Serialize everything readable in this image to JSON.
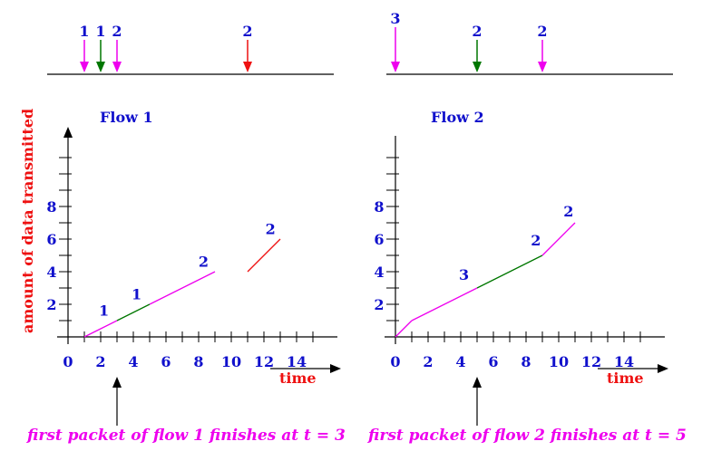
{
  "colors": {
    "blue": "#1010cc",
    "red": "#ee1111",
    "magenta": "#ee00ee",
    "green": "#007700",
    "black": "#000000"
  },
  "ylabel": "amount of data transmitted",
  "xlabel": "time",
  "panels": [
    {
      "title": "Flow 1",
      "caption": "first packet of flow 1 finishes at t = 3",
      "arrivals": [
        {
          "label": "1",
          "t": 1,
          "color": "magenta"
        },
        {
          "label": "1",
          "t": 2,
          "color": "green"
        },
        {
          "label": "2",
          "t": 3,
          "color": "magenta"
        },
        {
          "label": "2",
          "t": 11,
          "color": "red"
        }
      ],
      "finish_t": 3,
      "x_tick_labels": [
        {
          "text": "0",
          "t": 0
        },
        {
          "text": "2",
          "t": 2
        },
        {
          "text": "4",
          "t": 4
        },
        {
          "text": "6",
          "t": 6
        },
        {
          "text": "8",
          "t": 8
        },
        {
          "text": "10",
          "t": 10
        },
        {
          "text": "12",
          "t": 12
        },
        {
          "text": "14",
          "t": 14
        }
      ],
      "y_tick_labels": [
        {
          "text": "2",
          "v": 2
        },
        {
          "text": "4",
          "v": 4
        },
        {
          "text": "6",
          "v": 6
        },
        {
          "text": "8",
          "v": 8
        }
      ],
      "segments": [
        {
          "t0": 1,
          "v0": 0,
          "t1": 3,
          "v1": 1,
          "color": "magenta"
        },
        {
          "t0": 3,
          "v0": 1,
          "t1": 5,
          "v1": 2,
          "color": "green"
        },
        {
          "t0": 5,
          "v0": 2,
          "t1": 9,
          "v1": 4,
          "color": "magenta"
        },
        {
          "t0": 11,
          "v0": 4,
          "t1": 13,
          "v1": 6,
          "color": "red"
        }
      ],
      "line_labels": [
        {
          "text": "1",
          "t": 2.2,
          "v": 1.3
        },
        {
          "text": "1",
          "t": 4.2,
          "v": 2.3
        },
        {
          "text": "2",
          "t": 8.3,
          "v": 4.3
        },
        {
          "text": "2",
          "t": 12.4,
          "v": 6.3
        }
      ]
    },
    {
      "title": "Flow 2",
      "caption": "first packet of flow  2 finishes at t = 5",
      "arrivals": [
        {
          "label": "3",
          "t": 0,
          "color": "magenta"
        },
        {
          "label": "2",
          "t": 5,
          "color": "green"
        },
        {
          "label": "2",
          "t": 9,
          "color": "magenta"
        }
      ],
      "finish_t": 5,
      "x_tick_labels": [
        {
          "text": "0",
          "t": 0
        },
        {
          "text": "2",
          "t": 2
        },
        {
          "text": "4",
          "t": 4
        },
        {
          "text": "6",
          "t": 6
        },
        {
          "text": "8",
          "t": 8
        },
        {
          "text": "10",
          "t": 10
        },
        {
          "text": "12",
          "t": 12
        },
        {
          "text": "14",
          "t": 14
        }
      ],
      "y_tick_labels": [
        {
          "text": "2",
          "v": 2
        },
        {
          "text": "4",
          "v": 4
        },
        {
          "text": "6",
          "v": 6
        },
        {
          "text": "8",
          "v": 8
        }
      ],
      "segments": [
        {
          "t0": 0,
          "v0": 0,
          "t1": 1,
          "v1": 1,
          "color": "magenta"
        },
        {
          "t0": 1,
          "v0": 1,
          "t1": 5,
          "v1": 3,
          "color": "magenta"
        },
        {
          "t0": 5,
          "v0": 3,
          "t1": 9,
          "v1": 5,
          "color": "green"
        },
        {
          "t0": 9,
          "v0": 5,
          "t1": 11,
          "v1": 7,
          "color": "magenta"
        }
      ],
      "line_labels": [
        {
          "text": "3",
          "t": 4.2,
          "v": 3.5
        },
        {
          "text": "2",
          "t": 8.6,
          "v": 5.6
        },
        {
          "text": "2",
          "t": 10.6,
          "v": 7.4
        }
      ]
    }
  ]
}
